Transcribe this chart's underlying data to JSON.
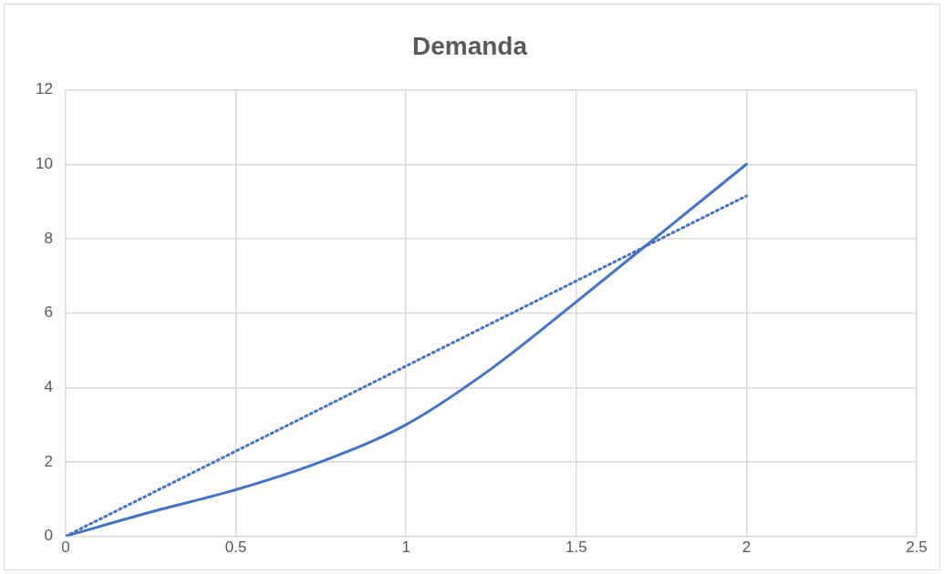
{
  "chart_data": {
    "type": "line",
    "title": "Demanda",
    "xlim": [
      0,
      2.5
    ],
    "xticks": [
      0,
      0.5,
      1,
      1.5,
      2,
      2.5
    ],
    "ylim": [
      0,
      12
    ],
    "yticks": [
      0,
      2,
      4,
      6,
      8,
      10,
      12
    ],
    "grid": true,
    "legend": false,
    "marker": "none",
    "series": [
      {
        "color": "#4472c4",
        "line_style": "solid",
        "x": [
          0,
          0.25,
          0.5,
          0.75,
          1,
          1.25,
          1.5,
          1.75,
          2
        ],
        "values": [
          0,
          0.65,
          1.25,
          2.0,
          3.0,
          4.5,
          6.3,
          8.15,
          10
        ]
      },
      {
        "color": "#4472c4",
        "line_style": "dotted",
        "x": [
          0,
          2
        ],
        "values": [
          0,
          9.15
        ]
      }
    ]
  }
}
